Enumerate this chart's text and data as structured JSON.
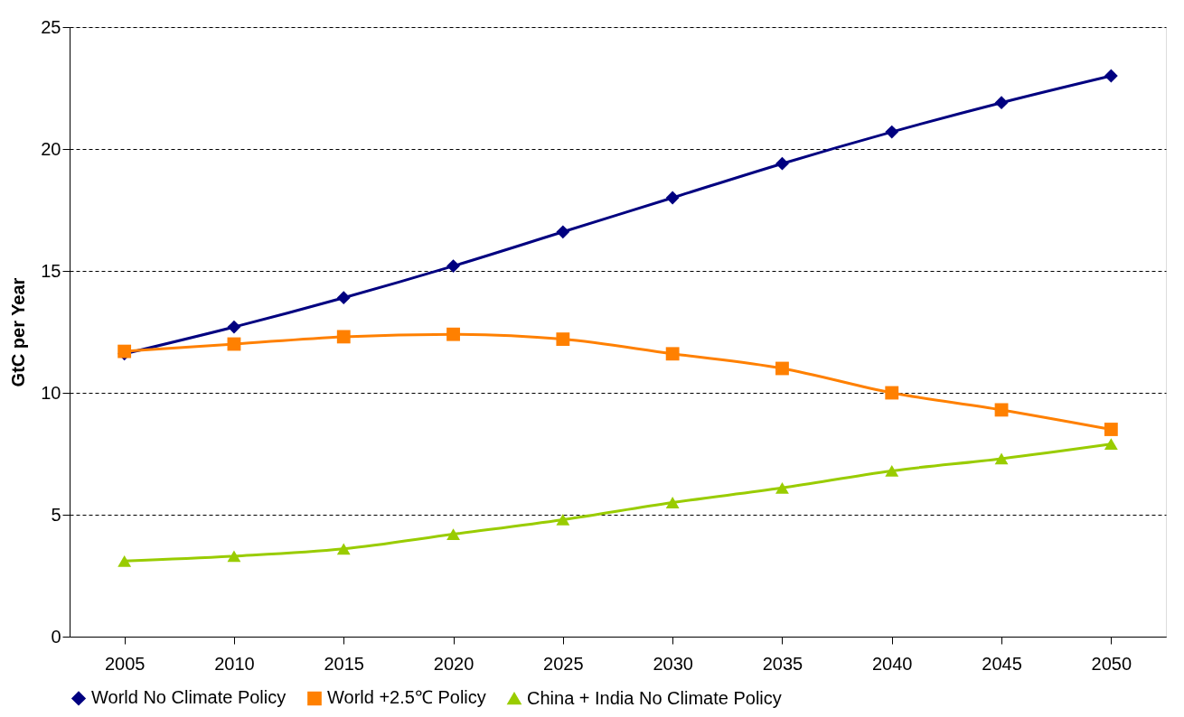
{
  "chart_data": {
    "type": "line",
    "ylabel": "GtC per Year",
    "categories": [
      "2005",
      "2010",
      "2015",
      "2020",
      "2025",
      "2030",
      "2035",
      "2040",
      "2045",
      "2050"
    ],
    "series": [
      {
        "name": "World No Climate Policy",
        "color": "#000080",
        "marker": "diamond",
        "values": [
          11.6,
          12.7,
          13.9,
          15.2,
          16.6,
          18.0,
          19.4,
          20.7,
          21.9,
          23.0
        ]
      },
      {
        "name": "World +2.5℃ Policy",
        "color": "#ff8000",
        "marker": "square",
        "values": [
          11.7,
          12.0,
          12.3,
          12.4,
          12.2,
          11.6,
          11.0,
          10.0,
          9.3,
          8.5
        ]
      },
      {
        "name": "China + India No Climate Policy",
        "color": "#99cc00",
        "marker": "triangle",
        "values": [
          3.1,
          3.3,
          3.6,
          4.2,
          4.8,
          5.5,
          6.1,
          6.8,
          7.3,
          7.9
        ]
      }
    ],
    "ylim": [
      0,
      25
    ],
    "yticks": [
      0,
      5,
      10,
      15,
      20,
      25
    ],
    "grid": "y",
    "legend": "bottom",
    "line_style": "solid"
  }
}
